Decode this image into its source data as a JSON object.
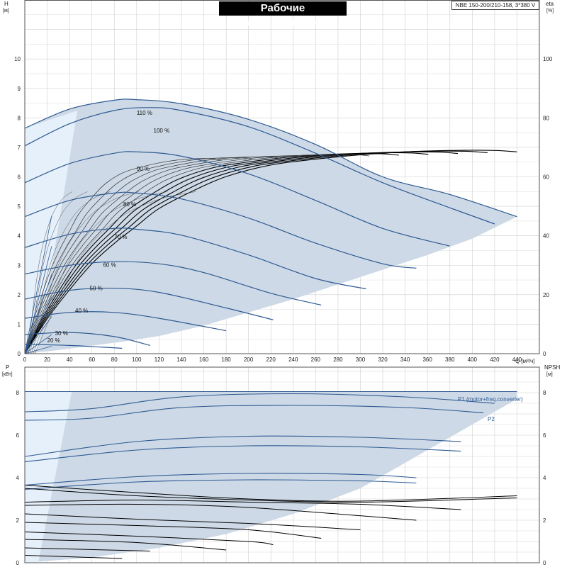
{
  "title": "Рабочие характеристики",
  "model": "NBE 150-200/210-158, 3*380 V",
  "colors": {
    "envelope": "#cdd9e6",
    "envelope_light": "#e6f0fa",
    "curve_blue": "#2e5a92",
    "curve_black": "#000000",
    "grid": "#cfcfcf",
    "axis": "#555555"
  },
  "chart_data": [
    {
      "type": "line",
      "name": "head",
      "x_axis": {
        "label": "Q [м³/ч]",
        "range": [
          0,
          460
        ],
        "ticks": [
          0,
          20,
          40,
          60,
          80,
          100,
          120,
          140,
          160,
          180,
          200,
          220,
          240,
          260,
          280,
          300,
          320,
          340,
          360,
          380,
          400,
          420,
          440
        ]
      },
      "y_axis": {
        "label_top": "H",
        "label_unit": "[м]",
        "range": [
          0,
          12
        ],
        "ticks": [
          0,
          1,
          2,
          3,
          4,
          5,
          6,
          7,
          8,
          9,
          10
        ]
      },
      "y2_axis": {
        "label_top": "eta",
        "label_unit": "[%]",
        "range": [
          0,
          120
        ],
        "ticks": [
          0,
          20,
          40,
          60,
          80,
          100
        ]
      },
      "grid": true,
      "speed_curves": [
        {
          "label": "110 %",
          "label_at": [
            100,
            8.1
          ],
          "x": [
            0,
            40,
            80,
            100,
            140,
            200,
            260,
            320,
            380,
            440
          ],
          "y": [
            7.65,
            8.3,
            8.6,
            8.62,
            8.48,
            7.95,
            7.1,
            6.0,
            5.4,
            4.65
          ]
        },
        {
          "label": "100 %",
          "label_at": [
            115,
            7.5
          ],
          "x": [
            0,
            40,
            80,
            110,
            140,
            200,
            260,
            320,
            380,
            420
          ],
          "y": [
            7.05,
            7.8,
            8.25,
            8.35,
            8.25,
            7.7,
            6.8,
            5.8,
            4.95,
            4.4
          ]
        },
        {
          "label": "90 %",
          "label_at": [
            100,
            6.2
          ],
          "x": [
            0,
            40,
            80,
            100,
            140,
            200,
            260,
            320,
            380
          ],
          "y": [
            5.8,
            6.45,
            6.8,
            6.85,
            6.7,
            6.1,
            5.2,
            4.25,
            3.65
          ]
        },
        {
          "label": "80 %",
          "label_at": [
            88,
            5.0
          ],
          "x": [
            0,
            40,
            80,
            100,
            140,
            200,
            260,
            320,
            350
          ],
          "y": [
            4.65,
            5.2,
            5.45,
            5.45,
            5.25,
            4.6,
            3.75,
            3.05,
            2.9
          ]
        },
        {
          "label": "70 %",
          "label_at": [
            80,
            3.9
          ],
          "x": [
            0,
            40,
            80,
            100,
            140,
            200,
            260,
            305
          ],
          "y": [
            3.6,
            4.05,
            4.25,
            4.22,
            4.02,
            3.35,
            2.55,
            2.2
          ]
        },
        {
          "label": "60 %",
          "label_at": [
            70,
            2.95
          ],
          "x": [
            0,
            40,
            80,
            120,
            160,
            220,
            265
          ],
          "y": [
            2.7,
            3.0,
            3.12,
            3.05,
            2.75,
            2.05,
            1.65
          ]
        },
        {
          "label": "50 %",
          "label_at": [
            58,
            2.15
          ],
          "x": [
            0,
            40,
            80,
            120,
            180,
            222
          ],
          "y": [
            1.85,
            2.15,
            2.22,
            2.08,
            1.55,
            1.15
          ]
        },
        {
          "label": "40 %",
          "label_at": [
            45,
            1.4
          ],
          "x": [
            0,
            40,
            80,
            120,
            180
          ],
          "y": [
            1.2,
            1.4,
            1.4,
            1.2,
            0.78
          ]
        },
        {
          "label": "30 %",
          "label_at": [
            27,
            0.62
          ],
          "x": [
            0,
            40,
            80,
            112
          ],
          "y": [
            0.65,
            0.72,
            0.58,
            0.28
          ]
        },
        {
          "label": "20 %",
          "label_at": [
            20,
            0.38
          ],
          "x": [
            0,
            40,
            70,
            87
          ],
          "y": [
            0.32,
            0.28,
            0.22,
            0.18
          ]
        }
      ],
      "efficiency_curves": {
        "axis": "y2",
        "x": [
          0,
          20,
          40,
          60,
          80,
          100,
          120,
          150,
          180,
          220,
          260,
          300,
          340,
          380,
          420,
          440
        ],
        "y": [
          0,
          12,
          22,
          31,
          38,
          44,
          50,
          56,
          61,
          65,
          67,
          68.5,
          69.5,
          70,
          70,
          69.5
        ]
      }
    },
    {
      "type": "line",
      "name": "power",
      "x_axis": {
        "range": [
          0,
          460
        ]
      },
      "y_axis": {
        "label_top": "P",
        "label_unit": "[кВт]",
        "range": [
          0,
          9.2
        ],
        "ticks": [
          0,
          2,
          4,
          6,
          8
        ]
      },
      "y2_axis": {
        "label_top": "NPSH",
        "label_unit": "[м]",
        "range": [
          0,
          9.2
        ],
        "ticks": [
          0,
          2,
          4,
          6,
          8
        ]
      },
      "grid": true,
      "legend": [
        {
          "label": "P1 (motor+freq.converter)",
          "label_at": [
            398,
            8.2
          ]
        },
        {
          "label": "P2",
          "label_at": [
            420,
            7.1
          ]
        }
      ],
      "p1_curves": [
        {
          "x": [
            0,
            440
          ],
          "y": [
            8.05,
            8.05
          ]
        },
        {
          "x": [
            0,
            60,
            140,
            240,
            340,
            420
          ],
          "y": [
            7.1,
            7.25,
            7.8,
            7.95,
            7.8,
            7.5
          ]
        },
        {
          "x": [
            0,
            60,
            140,
            240,
            340,
            410
          ],
          "y": [
            6.7,
            6.8,
            7.3,
            7.4,
            7.3,
            7.05
          ]
        },
        {
          "x": [
            0,
            100,
            200,
            300,
            390
          ],
          "y": [
            5.0,
            5.7,
            5.95,
            5.9,
            5.7
          ]
        },
        {
          "x": [
            0,
            100,
            200,
            300,
            390
          ],
          "y": [
            4.75,
            5.3,
            5.5,
            5.45,
            5.25
          ]
        },
        {
          "x": [
            0,
            100,
            200,
            300,
            350
          ],
          "y": [
            3.65,
            4.05,
            4.2,
            4.15,
            4.0
          ]
        },
        {
          "x": [
            0,
            100,
            200,
            300,
            350
          ],
          "y": [
            3.45,
            3.8,
            3.9,
            3.85,
            3.75
          ]
        }
      ],
      "npsh_curves": [
        {
          "x": [
            0,
            100,
            200,
            300,
            440
          ],
          "y": [
            3.65,
            3.3,
            3.0,
            2.9,
            3.15
          ]
        },
        {
          "x": [
            0,
            100,
            200,
            300,
            440
          ],
          "y": [
            3.5,
            3.15,
            2.95,
            2.85,
            3.05
          ]
        },
        {
          "x": [
            0,
            100,
            200,
            300,
            390
          ],
          "y": [
            2.85,
            2.95,
            2.85,
            2.75,
            2.5
          ]
        },
        {
          "x": [
            0,
            100,
            200,
            350
          ],
          "y": [
            2.7,
            2.75,
            2.6,
            2.0
          ]
        },
        {
          "x": [
            0,
            100,
            200,
            300
          ],
          "y": [
            2.3,
            2.05,
            1.85,
            1.55
          ]
        },
        {
          "x": [
            0,
            100,
            200,
            265
          ],
          "y": [
            1.9,
            1.75,
            1.55,
            1.15
          ]
        },
        {
          "x": [
            0,
            100,
            200,
            222
          ],
          "y": [
            1.45,
            1.25,
            1.0,
            0.85
          ]
        },
        {
          "x": [
            0,
            100,
            180
          ],
          "y": [
            1.1,
            0.95,
            0.6
          ]
        },
        {
          "x": [
            0,
            112
          ],
          "y": [
            0.7,
            0.55
          ]
        },
        {
          "x": [
            0,
            87
          ],
          "y": [
            0.35,
            0.2
          ]
        }
      ]
    }
  ]
}
